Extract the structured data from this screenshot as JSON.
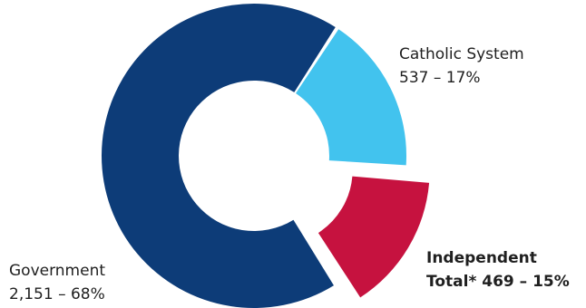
{
  "chart_data": {
    "type": "pie",
    "variant": "donut",
    "categories": [
      "Catholic System",
      "Independent Total*",
      "Government"
    ],
    "values": [
      537,
      469,
      2151
    ],
    "percents": [
      17,
      15,
      68
    ],
    "colors": [
      "#42c3ee",
      "#c6123f",
      "#0d3c78"
    ],
    "exploded": [
      "Independent Total*"
    ],
    "labels": {
      "catholic": {
        "line1": "Catholic System",
        "line2": "537 – 17%"
      },
      "independent": {
        "line1": "Independent",
        "line2": "Total* 469 – 15%"
      },
      "government": {
        "line1": "Government",
        "line2": "2,151 – 68%"
      }
    }
  }
}
